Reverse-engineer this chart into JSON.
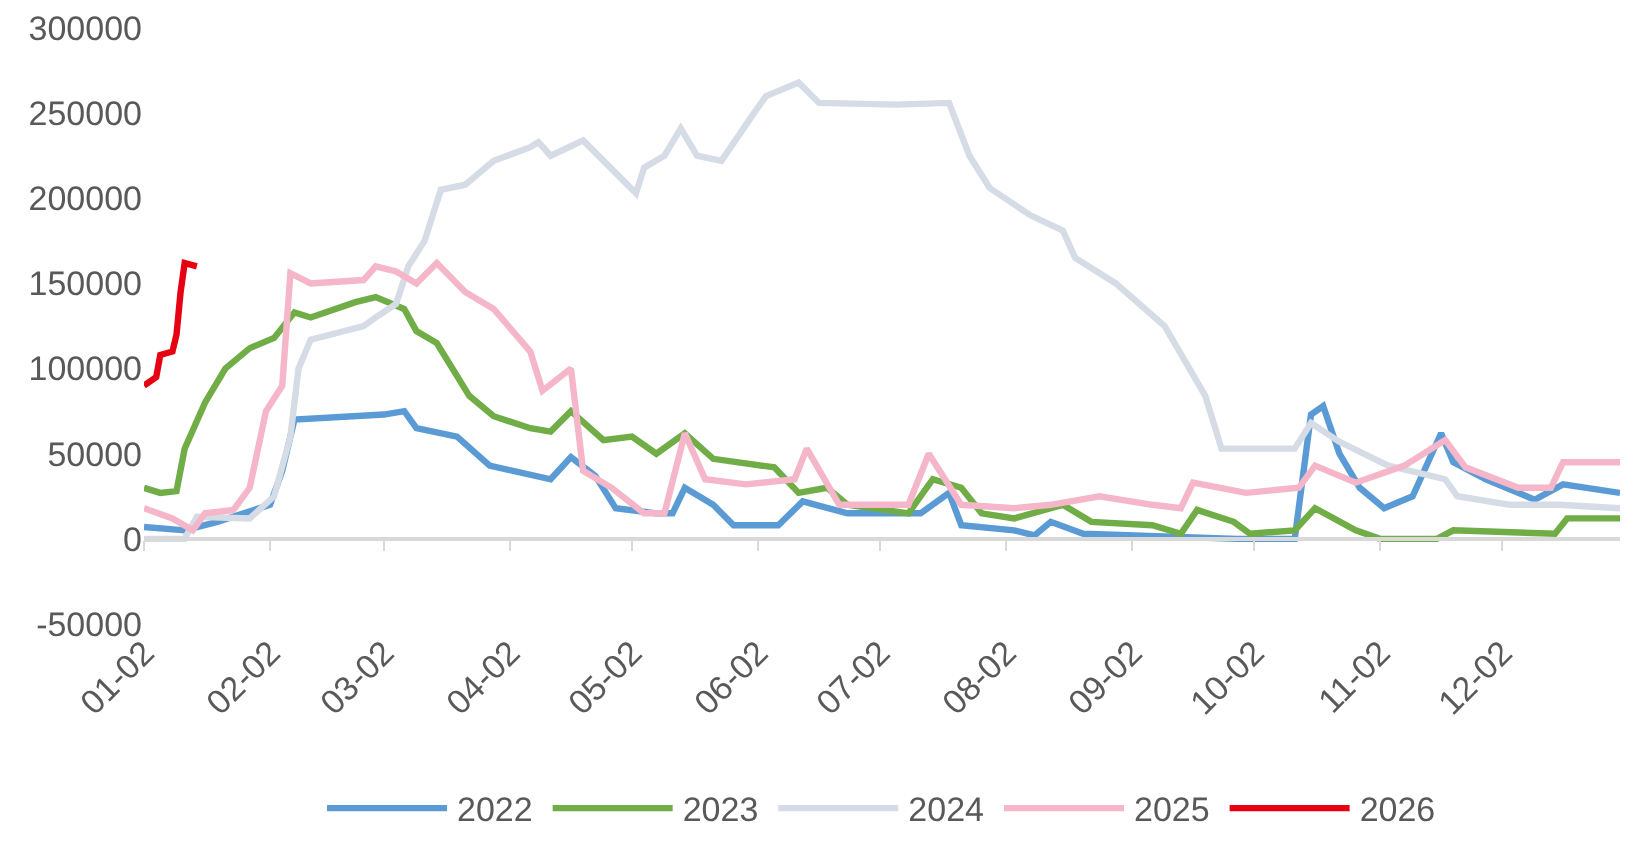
{
  "chart_data": {
    "type": "line",
    "legend": "bottom",
    "line_style": "solid",
    "marker": "none",
    "xlim": [
      "--01-02",
      "--12-31"
    ],
    "xticks": [
      {
        "value": "--01-02",
        "label": "01-02"
      },
      {
        "value": "--02-02",
        "label": "02-02"
      },
      {
        "value": "--03-02",
        "label": "03-02"
      },
      {
        "value": "--04-02",
        "label": "04-02"
      },
      {
        "value": "--05-02",
        "label": "05-02"
      },
      {
        "value": "--06-02",
        "label": "06-02"
      },
      {
        "value": "--07-02",
        "label": "07-02"
      },
      {
        "value": "--08-02",
        "label": "08-02"
      },
      {
        "value": "--09-02",
        "label": "09-02"
      },
      {
        "value": "--10-02",
        "label": "10-02"
      },
      {
        "value": "--11-02",
        "label": "11-02"
      },
      {
        "value": "--12-02",
        "label": "12-02"
      }
    ],
    "ylim": [
      -50000,
      300000
    ],
    "yticks": [
      -50000,
      0,
      50000,
      100000,
      150000,
      200000,
      250000,
      300000
    ],
    "series": [
      {
        "name": "2022",
        "color": "#5b9bd5",
        "x": [
          "--01-02",
          "--01-12",
          "--01-20",
          "--02-02",
          "--02-05",
          "--02-08",
          "--03-02",
          "--03-07",
          "--03-10",
          "--03-20",
          "--03-28",
          "--04-12",
          "--04-17",
          "--04-23",
          "--04-28",
          "--05-08",
          "--05-12",
          "--05-15",
          "--05-22",
          "--05-27",
          "--06-07",
          "--06-13",
          "--06-24",
          "--07-12",
          "--07-19",
          "--07-22",
          "--08-04",
          "--08-09",
          "--08-13",
          "--08-21",
          "--09-28",
          "--10-12",
          "--10-16",
          "--10-19",
          "--10-23",
          "--10-28",
          "--11-03",
          "--11-10",
          "--11-17",
          "--11-20",
          "--11-28",
          "--12-10",
          "--12-17",
          "--12-31"
        ],
        "values": [
          7000,
          5000,
          10000,
          20000,
          40000,
          70000,
          73000,
          75000,
          65000,
          60000,
          43000,
          35000,
          48000,
          37000,
          18000,
          15000,
          15000,
          30000,
          20000,
          8000,
          8000,
          22000,
          15000,
          15000,
          27000,
          8000,
          5000,
          2000,
          10000,
          3000,
          0,
          0,
          73000,
          78000,
          50000,
          30000,
          18000,
          25000,
          62000,
          45000,
          35000,
          23000,
          32000,
          27000
        ]
      },
      {
        "name": "2023",
        "color": "#70ad47",
        "x": [
          "--01-02",
          "--01-06",
          "--01-10",
          "--01-12",
          "--01-17",
          "--01-22",
          "--01-28",
          "--02-03",
          "--02-08",
          "--02-12",
          "--02-23",
          "--02-28",
          "--03-07",
          "--03-10",
          "--03-15",
          "--03-23",
          "--03-29",
          "--04-07",
          "--04-12",
          "--04-17",
          "--04-25",
          "--05-02",
          "--05-08",
          "--05-15",
          "--05-22",
          "--06-06",
          "--06-12",
          "--06-19",
          "--06-24",
          "--07-09",
          "--07-15",
          "--07-22",
          "--07-27",
          "--08-04",
          "--08-16",
          "--08-23",
          "--09-07",
          "--09-14",
          "--09-18",
          "--09-27",
          "--10-01",
          "--10-12",
          "--10-17",
          "--10-27",
          "--11-02",
          "--11-16",
          "--11-20",
          "--12-15",
          "--12-18",
          "--12-31"
        ],
        "values": [
          30000,
          27000,
          28000,
          53000,
          80000,
          100000,
          112000,
          118000,
          133000,
          130000,
          139000,
          142000,
          135000,
          122000,
          115000,
          84000,
          72000,
          65000,
          63000,
          75000,
          58000,
          60000,
          50000,
          62000,
          47000,
          42000,
          27000,
          30000,
          20000,
          15000,
          35000,
          30000,
          15000,
          12000,
          20000,
          10000,
          8000,
          3000,
          17000,
          10000,
          3000,
          5000,
          18000,
          5000,
          0,
          0,
          5000,
          3000,
          12000,
          12000
        ]
      },
      {
        "name": "2024",
        "color": "#d6dce5",
        "x": [
          "--01-02",
          "--01-12",
          "--01-15",
          "--01-28",
          "--02-03",
          "--02-07",
          "--02-09",
          "--02-12",
          "--02-25",
          "--02-28",
          "--03-05",
          "--03-08",
          "--03-12",
          "--03-16",
          "--03-22",
          "--03-29",
          "--04-07",
          "--04-09",
          "--04-12",
          "--04-20",
          "--05-03",
          "--05-05",
          "--05-10",
          "--05-14",
          "--05-18",
          "--05-24",
          "--06-01",
          "--06-04",
          "--06-12",
          "--06-17",
          "--07-06",
          "--07-19",
          "--07-24",
          "--07-29",
          "--08-08",
          "--08-16",
          "--08-19",
          "--08-29",
          "--09-10",
          "--09-20",
          "--09-24",
          "--10-12",
          "--10-16",
          "--10-23",
          "--11-04",
          "--11-18",
          "--11-21",
          "--12-04",
          "--12-16",
          "--12-31"
        ],
        "values": [
          0,
          0,
          13000,
          12000,
          25000,
          60000,
          100000,
          117000,
          125000,
          130000,
          138000,
          160000,
          175000,
          205000,
          208000,
          222000,
          230000,
          233000,
          225000,
          234000,
          203000,
          218000,
          225000,
          241000,
          225000,
          222000,
          250000,
          260000,
          268000,
          256000,
          255000,
          256000,
          225000,
          206000,
          190000,
          181000,
          165000,
          150000,
          125000,
          84000,
          53000,
          53000,
          68000,
          57000,
          43000,
          35000,
          25000,
          20000,
          20000,
          18000
        ]
      },
      {
        "name": "2025",
        "color": "#f4b6c8",
        "x": [
          "--01-02",
          "--01-09",
          "--01-14",
          "--01-17",
          "--01-24",
          "--01-28",
          "--02-01",
          "--02-05",
          "--02-07",
          "--02-12",
          "--02-25",
          "--02-28",
          "--03-05",
          "--03-10",
          "--03-15",
          "--03-22",
          "--03-29",
          "--04-07",
          "--04-10",
          "--04-17",
          "--04-20",
          "--04-27",
          "--05-05",
          "--05-10",
          "--05-15",
          "--05-20",
          "--05-30",
          "--06-11",
          "--06-14",
          "--06-22",
          "--07-09",
          "--07-14",
          "--07-22",
          "--08-04",
          "--08-13",
          "--08-25",
          "--09-07",
          "--09-14",
          "--09-17",
          "--09-30",
          "--10-13",
          "--10-17",
          "--10-27",
          "--11-08",
          "--11-18",
          "--11-23",
          "--12-06",
          "--12-14",
          "--12-17",
          "--12-31"
        ],
        "values": [
          18000,
          12000,
          5000,
          15000,
          17000,
          30000,
          75000,
          90000,
          156000,
          150000,
          152000,
          160000,
          157000,
          150000,
          162000,
          145000,
          135000,
          110000,
          87000,
          100000,
          40000,
          30000,
          15000,
          15000,
          62000,
          35000,
          32000,
          35000,
          53000,
          20000,
          20000,
          50000,
          20000,
          18000,
          20000,
          25000,
          20000,
          18000,
          33000,
          27000,
          30000,
          43000,
          33000,
          43000,
          58000,
          42000,
          30000,
          30000,
          45000,
          45000
        ]
      },
      {
        "name": "2026",
        "color": "#e60012",
        "x": [
          "--01-02",
          "--01-05",
          "--01-06",
          "--01-09",
          "--01-10",
          "--01-11",
          "--01-12",
          "--01-15"
        ],
        "values": [
          90000,
          95000,
          108000,
          110000,
          120000,
          145000,
          162000,
          160000
        ]
      }
    ]
  }
}
